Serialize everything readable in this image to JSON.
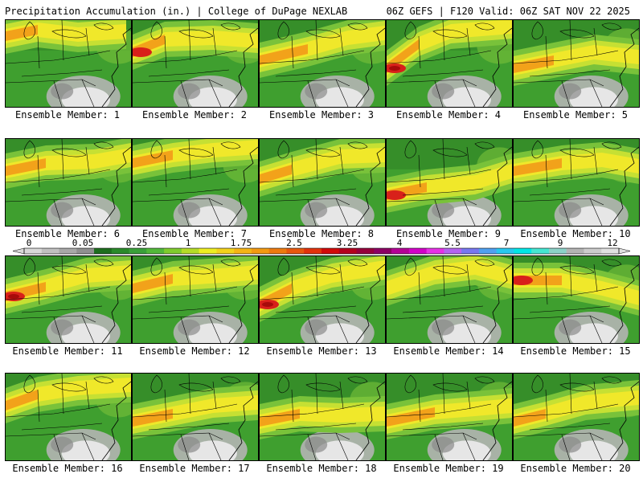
{
  "header": {
    "title_left": "Precipitation Accumulation (in.) | College of DuPage NEXLAB",
    "title_right": "06Z GEFS | F120 Valid: 06Z SAT NOV 22 2025"
  },
  "panels": [
    {
      "label": "Ensemble Member: 1"
    },
    {
      "label": "Ensemble Member: 2"
    },
    {
      "label": "Ensemble Member: 3"
    },
    {
      "label": "Ensemble Member: 4"
    },
    {
      "label": "Ensemble Member: 5"
    },
    {
      "label": "Ensemble Member: 6"
    },
    {
      "label": "Ensemble Member: 7"
    },
    {
      "label": "Ensemble Member: 8"
    },
    {
      "label": "Ensemble Member: 9"
    },
    {
      "label": "Ensemble Member: 10"
    },
    {
      "label": "Ensemble Member: 11"
    },
    {
      "label": "Ensemble Member: 12"
    },
    {
      "label": "Ensemble Member: 13"
    },
    {
      "label": "Ensemble Member: 14"
    },
    {
      "label": "Ensemble Member: 15"
    },
    {
      "label": "Ensemble Member: 16"
    },
    {
      "label": "Ensemble Member: 17"
    },
    {
      "label": "Ensemble Member: 18"
    },
    {
      "label": "Ensemble Member: 19"
    },
    {
      "label": "Ensemble Member: 20"
    }
  ],
  "colorbar": {
    "labels": [
      "0",
      "0.05",
      "0.25",
      "1",
      "1.75",
      "2.5",
      "3.25",
      "4",
      "5.5",
      "7",
      "9",
      "12"
    ],
    "colors": [
      "#d8d8d8",
      "#c0c0c0",
      "#a8a8a8",
      "#909090",
      "#1e6e1e",
      "#2a8a2a",
      "#3aa03a",
      "#52b83a",
      "#7fcc2e",
      "#b5dc28",
      "#eeee22",
      "#f3d21c",
      "#f5b416",
      "#f39a12",
      "#ee7a10",
      "#e8580e",
      "#e2320c",
      "#d20a0a",
      "#b4001e",
      "#96003c",
      "#8c0064",
      "#b40096",
      "#d200c8",
      "#e632e6",
      "#b464f0",
      "#7878f0",
      "#50a0f0",
      "#28c8f0",
      "#00e6e6",
      "#46e6d2",
      "#8cd2c8",
      "#b4b4b4",
      "#cccccc",
      "#e0e0e0"
    ],
    "dominant_palette": {
      "green_dark": "#2f7f25",
      "green_mid": "#3f9f2f",
      "green_light": "#79c23a",
      "yellow_green": "#c6e033",
      "yellow": "#f0e82a",
      "orange": "#f2a21a",
      "red": "#d8201a",
      "dark_red": "#a80a0a",
      "gray_light": "#e6e6e6",
      "gray_mid": "#b4b4b4",
      "gray_dark": "#8a8a8a"
    }
  }
}
